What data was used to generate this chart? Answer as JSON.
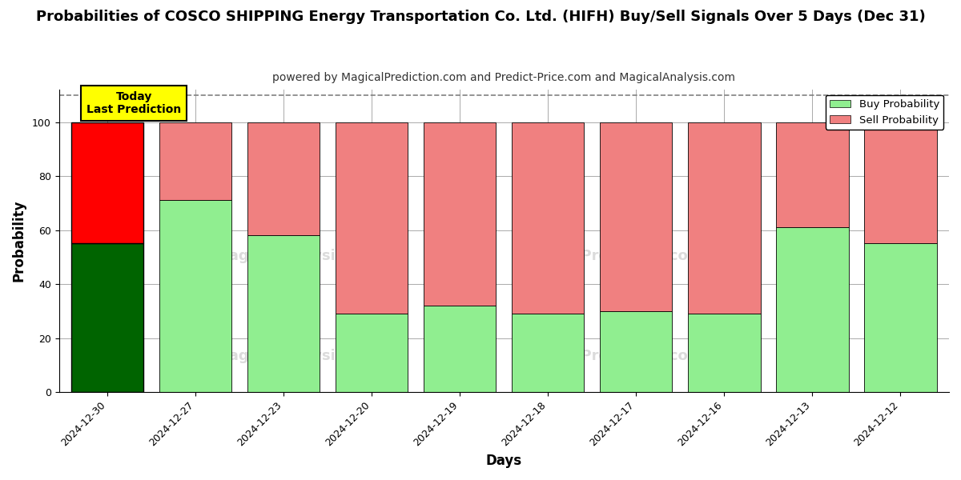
{
  "title": "Probabilities of COSCO SHIPPING Energy Transportation Co. Ltd. (HIFH) Buy/Sell Signals Over 5 Days (Dec 31)",
  "subtitle": "powered by MagicalPrediction.com and Predict-Price.com and MagicalAnalysis.com",
  "xlabel": "Days",
  "ylabel": "Probability",
  "categories": [
    "2024-12-30",
    "2024-12-27",
    "2024-12-23",
    "2024-12-20",
    "2024-12-19",
    "2024-12-18",
    "2024-12-17",
    "2024-12-16",
    "2024-12-13",
    "2024-12-12"
  ],
  "buy_values": [
    55,
    71,
    58,
    29,
    32,
    29,
    30,
    29,
    61,
    55
  ],
  "sell_values": [
    45,
    29,
    42,
    71,
    68,
    71,
    70,
    71,
    39,
    45
  ],
  "today_idx": 0,
  "buy_color_today": "#006400",
  "sell_color_today": "#FF0000",
  "buy_color_normal": "#90EE90",
  "sell_color_normal": "#F08080",
  "today_label_bg": "#FFFF00",
  "today_label_text": "Today\nLast Prediction",
  "legend_buy": "Buy Probability",
  "legend_sell": "Sell Probability",
  "ylim": [
    0,
    112
  ],
  "yticks": [
    0,
    20,
    40,
    60,
    80,
    100
  ],
  "dashed_line_y": 110,
  "background_color": "#ffffff",
  "grid_color": "#aaaaaa",
  "title_fontsize": 13,
  "subtitle_fontsize": 10,
  "axis_label_fontsize": 12,
  "tick_fontsize": 9
}
